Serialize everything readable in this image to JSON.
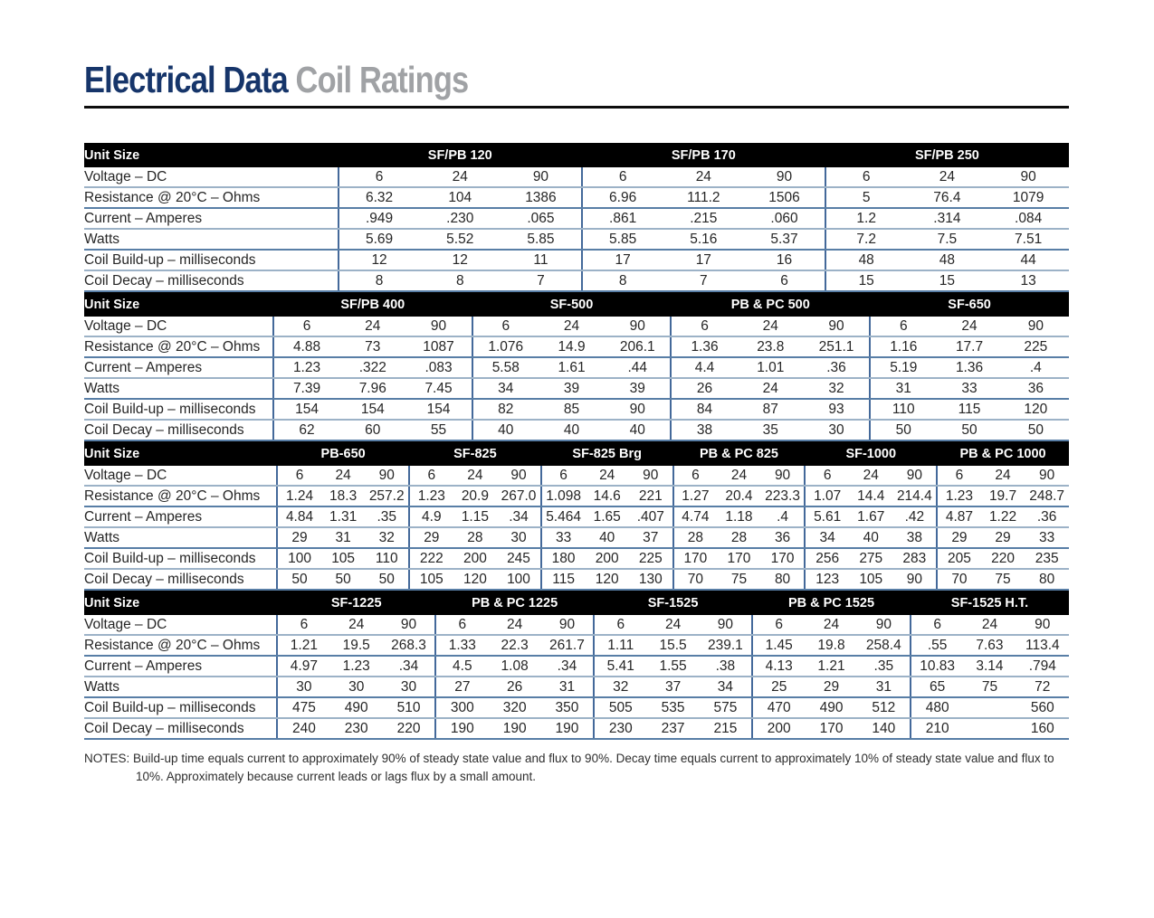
{
  "header": {
    "title_primary": "Electrical Data",
    "title_secondary": "Coil Ratings"
  },
  "unit_size_label": "Unit Size",
  "row_labels": [
    "Voltage – DC",
    "Resistance @ 20°C – Ohms",
    "Current – Amperes",
    "Watts",
    "Coil Build-up – milliseconds",
    "Coil Decay – milliseconds"
  ],
  "tables": [
    {
      "groups": [
        {
          "name": "SF/PB 120",
          "rows": [
            [
              "6",
              "24",
              "90"
            ],
            [
              "6.32",
              "104",
              "1386"
            ],
            [
              ".949",
              ".230",
              ".065"
            ],
            [
              "5.69",
              "5.52",
              "5.85"
            ],
            [
              "12",
              "12",
              "11"
            ],
            [
              "8",
              "8",
              "7"
            ]
          ]
        },
        {
          "name": "SF/PB 170",
          "rows": [
            [
              "6",
              "24",
              "90"
            ],
            [
              "6.96",
              "111.2",
              "1506"
            ],
            [
              ".861",
              ".215",
              ".060"
            ],
            [
              "5.85",
              "5.16",
              "5.37"
            ],
            [
              "17",
              "17",
              "16"
            ],
            [
              "8",
              "7",
              "6"
            ]
          ]
        },
        {
          "name": "SF/PB 250",
          "rows": [
            [
              "6",
              "24",
              "90"
            ],
            [
              "5",
              "76.4",
              "1079"
            ],
            [
              "1.2",
              ".314",
              ".084"
            ],
            [
              "7.2",
              "7.5",
              "7.51"
            ],
            [
              "48",
              "48",
              "44"
            ],
            [
              "15",
              "15",
              "13"
            ]
          ]
        }
      ]
    },
    {
      "groups": [
        {
          "name": "SF/PB 400",
          "rows": [
            [
              "6",
              "24",
              "90"
            ],
            [
              "4.88",
              "73",
              "1087"
            ],
            [
              "1.23",
              ".322",
              ".083"
            ],
            [
              "7.39",
              "7.96",
              "7.45"
            ],
            [
              "154",
              "154",
              "154"
            ],
            [
              "62",
              "60",
              "55"
            ]
          ]
        },
        {
          "name": "SF-500",
          "rows": [
            [
              "6",
              "24",
              "90"
            ],
            [
              "1.076",
              "14.9",
              "206.1"
            ],
            [
              "5.58",
              "1.61",
              ".44"
            ],
            [
              "34",
              "39",
              "39"
            ],
            [
              "82",
              "85",
              "90"
            ],
            [
              "40",
              "40",
              "40"
            ]
          ]
        },
        {
          "name": "PB & PC 500",
          "rows": [
            [
              "6",
              "24",
              "90"
            ],
            [
              "1.36",
              "23.8",
              "251.1"
            ],
            [
              "4.4",
              "1.01",
              ".36"
            ],
            [
              "26",
              "24",
              "32"
            ],
            [
              "84",
              "87",
              "93"
            ],
            [
              "38",
              "35",
              "30"
            ]
          ]
        },
        {
          "name": "SF-650",
          "rows": [
            [
              "6",
              "24",
              "90"
            ],
            [
              "1.16",
              "17.7",
              "225"
            ],
            [
              "5.19",
              "1.36",
              ".4"
            ],
            [
              "31",
              "33",
              "36"
            ],
            [
              "110",
              "115",
              "120"
            ],
            [
              "50",
              "50",
              "50"
            ]
          ]
        }
      ]
    },
    {
      "groups": [
        {
          "name": "PB-650",
          "rows": [
            [
              "6",
              "24",
              "90"
            ],
            [
              "1.24",
              "18.3",
              "257.2"
            ],
            [
              "4.84",
              "1.31",
              ".35"
            ],
            [
              "29",
              "31",
              "32"
            ],
            [
              "100",
              "105",
              "110"
            ],
            [
              "50",
              "50",
              "50"
            ]
          ]
        },
        {
          "name": "SF-825",
          "rows": [
            [
              "6",
              "24",
              "90"
            ],
            [
              "1.23",
              "20.9",
              "267.0"
            ],
            [
              "4.9",
              "1.15",
              ".34"
            ],
            [
              "29",
              "28",
              "30"
            ],
            [
              "222",
              "200",
              "245"
            ],
            [
              "105",
              "120",
              "100"
            ]
          ]
        },
        {
          "name": "SF-825 Brg",
          "rows": [
            [
              "6",
              "24",
              "90"
            ],
            [
              "1.098",
              "14.6",
              "221"
            ],
            [
              "5.464",
              "1.65",
              ".407"
            ],
            [
              "33",
              "40",
              "37"
            ],
            [
              "180",
              "200",
              "225"
            ],
            [
              "115",
              "120",
              "130"
            ]
          ]
        },
        {
          "name": "PB & PC 825",
          "rows": [
            [
              "6",
              "24",
              "90"
            ],
            [
              "1.27",
              "20.4",
              "223.3"
            ],
            [
              "4.74",
              "1.18",
              ".4"
            ],
            [
              "28",
              "28",
              "36"
            ],
            [
              "170",
              "170",
              "170"
            ],
            [
              "70",
              "75",
              "80"
            ]
          ]
        },
        {
          "name": "SF-1000",
          "rows": [
            [
              "6",
              "24",
              "90"
            ],
            [
              "1.07",
              "14.4",
              "214.4"
            ],
            [
              "5.61",
              "1.67",
              ".42"
            ],
            [
              "34",
              "40",
              "38"
            ],
            [
              "256",
              "275",
              "283"
            ],
            [
              "123",
              "105",
              "90"
            ]
          ]
        },
        {
          "name": "PB & PC 1000",
          "rows": [
            [
              "6",
              "24",
              "90"
            ],
            [
              "1.23",
              "19.7",
              "248.7"
            ],
            [
              "4.87",
              "1.22",
              ".36"
            ],
            [
              "29",
              "29",
              "33"
            ],
            [
              "205",
              "220",
              "235"
            ],
            [
              "70",
              "75",
              "80"
            ]
          ]
        }
      ]
    },
    {
      "groups": [
        {
          "name": "SF-1225",
          "rows": [
            [
              "6",
              "24",
              "90"
            ],
            [
              "1.21",
              "19.5",
              "268.3"
            ],
            [
              "4.97",
              "1.23",
              ".34"
            ],
            [
              "30",
              "30",
              "30"
            ],
            [
              "475",
              "490",
              "510"
            ],
            [
              "240",
              "230",
              "220"
            ]
          ]
        },
        {
          "name": "PB & PC 1225",
          "rows": [
            [
              "6",
              "24",
              "90"
            ],
            [
              "1.33",
              "22.3",
              "261.7"
            ],
            [
              "4.5",
              "1.08",
              ".34"
            ],
            [
              "27",
              "26",
              "31"
            ],
            [
              "300",
              "320",
              "350"
            ],
            [
              "190",
              "190",
              "190"
            ]
          ]
        },
        {
          "name": "SF-1525",
          "rows": [
            [
              "6",
              "24",
              "90"
            ],
            [
              "1.11",
              "15.5",
              "239.1"
            ],
            [
              "5.41",
              "1.55",
              ".38"
            ],
            [
              "32",
              "37",
              "34"
            ],
            [
              "505",
              "535",
              "575"
            ],
            [
              "230",
              "237",
              "215"
            ]
          ]
        },
        {
          "name": "PB & PC 1525",
          "rows": [
            [
              "6",
              "24",
              "90"
            ],
            [
              "1.45",
              "19.8",
              "258.4"
            ],
            [
              "4.13",
              "1.21",
              ".35"
            ],
            [
              "25",
              "29",
              "31"
            ],
            [
              "470",
              "490",
              "512"
            ],
            [
              "200",
              "170",
              "140"
            ]
          ]
        },
        {
          "name": "SF-1525 H.T.",
          "rows": [
            [
              "6",
              "24",
              "90"
            ],
            [
              ".55",
              "7.63",
              "113.4"
            ],
            [
              "10.83",
              "3.14",
              ".794"
            ],
            [
              "65",
              "75",
              "72"
            ],
            [
              "480",
              "",
              "560"
            ],
            [
              "210",
              "",
              "160"
            ]
          ]
        }
      ]
    }
  ],
  "notes": {
    "prefix": "NOTES:",
    "body": "Build-up time equals current to approximately 90% of steady state value and flux to 90%. Decay time equals current to approximately 10% of steady state value and flux to 10%.  Approximately because current leads or lags flux by a small amount."
  },
  "colors": {
    "title_primary": "#16356a",
    "title_secondary": "#a0a2a5",
    "header_band": "#000000",
    "divider_vertical": "#44699a",
    "divider_horizontal": "#9cb2c7"
  }
}
